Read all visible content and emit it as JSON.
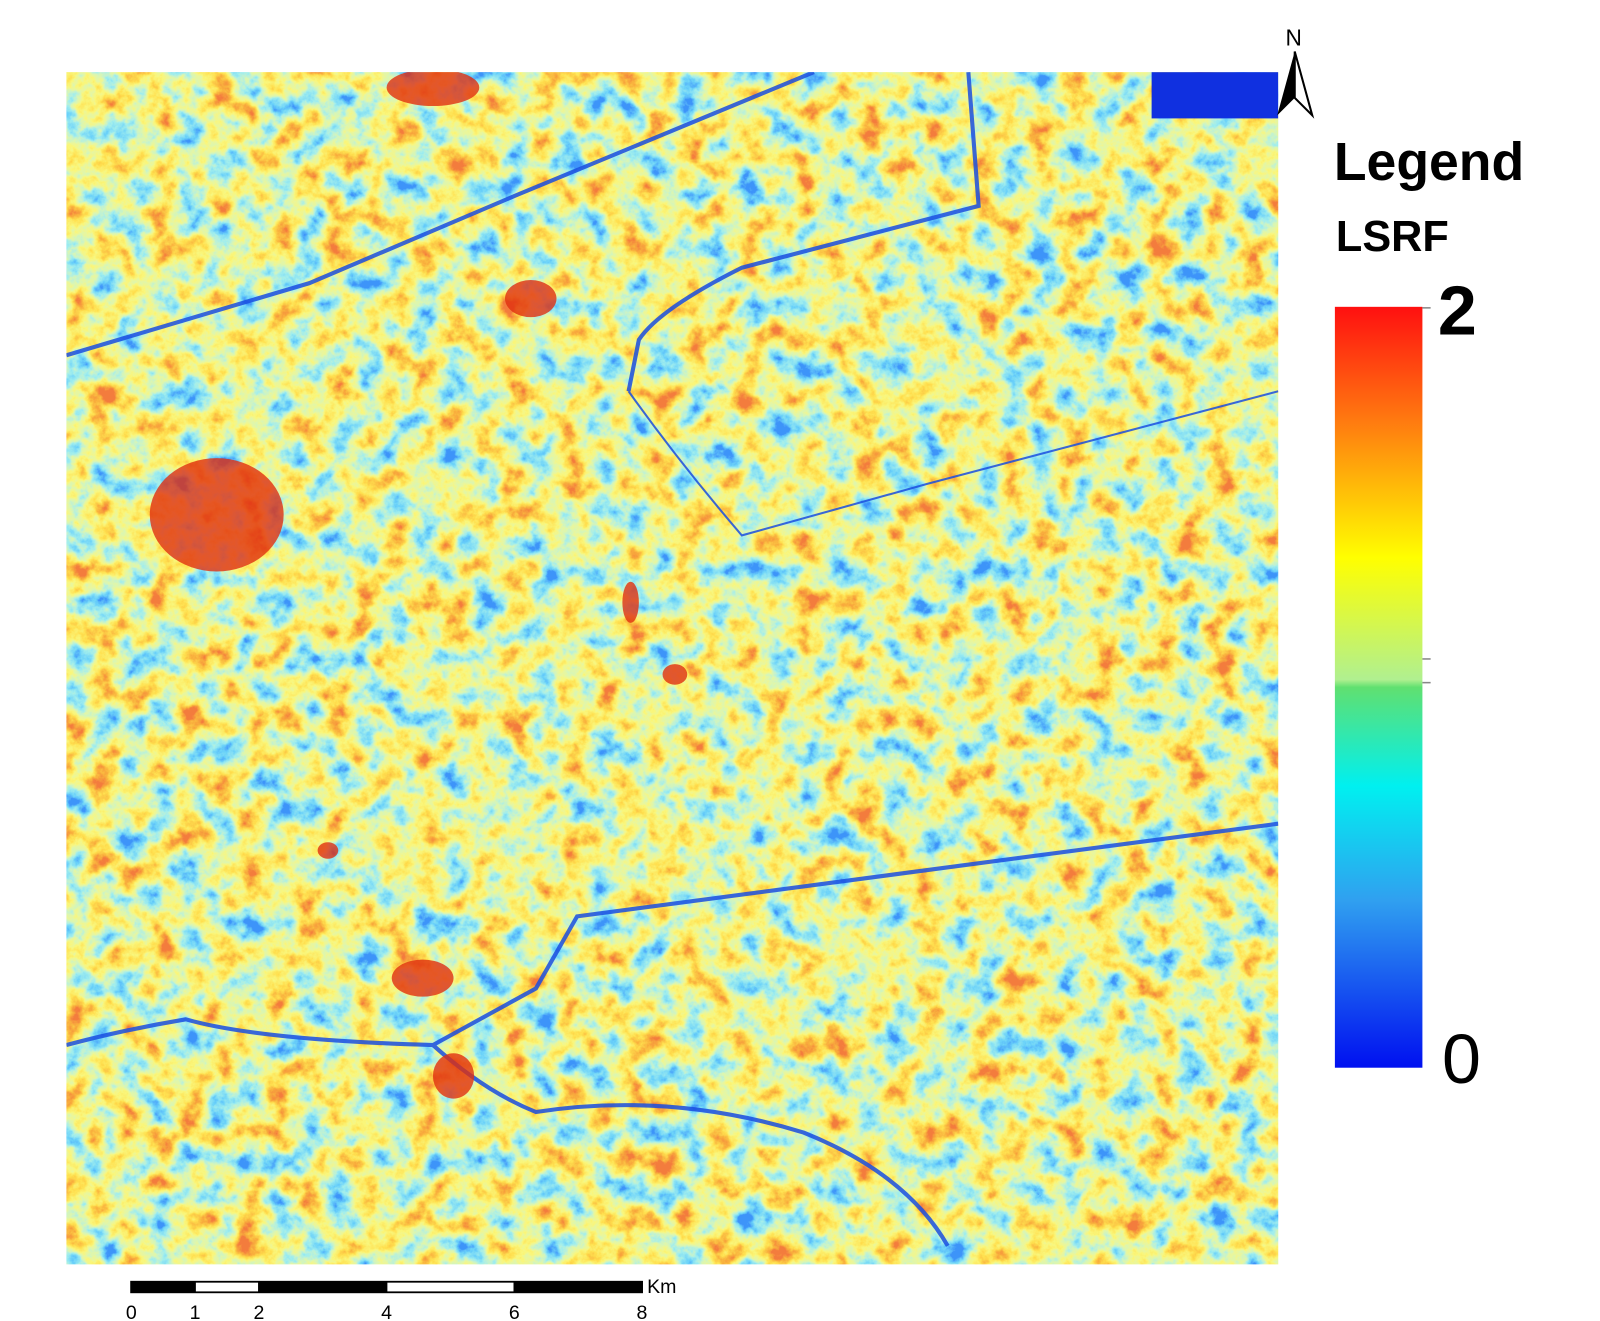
{
  "map": {
    "north_label": "N"
  },
  "legend": {
    "title": "Legend",
    "field": "LSRF",
    "max": "2",
    "min": "0"
  },
  "scale_bar": {
    "unit": "Km",
    "ticks": [
      0,
      1,
      2,
      4,
      6,
      8
    ]
  }
}
